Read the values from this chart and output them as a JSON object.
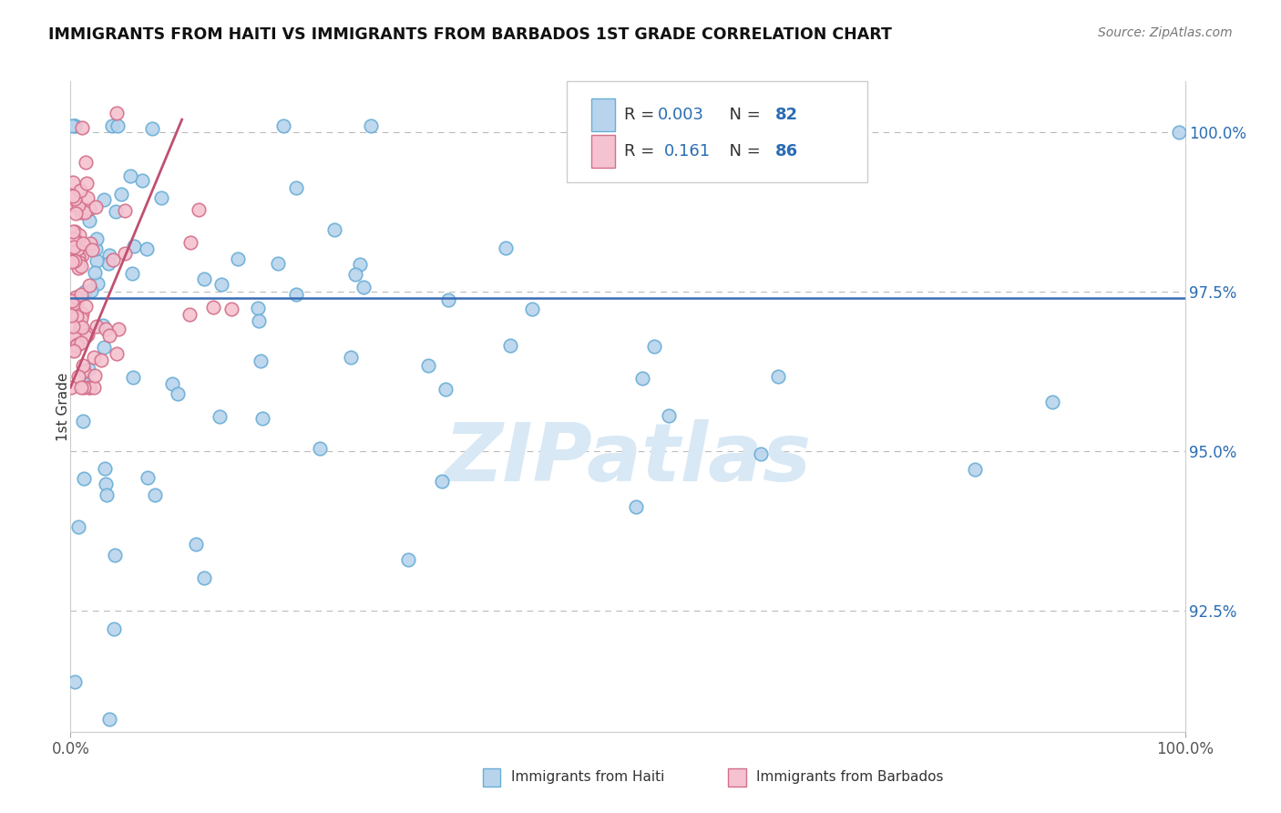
{
  "title": "IMMIGRANTS FROM HAITI VS IMMIGRANTS FROM BARBADOS 1ST GRADE CORRELATION CHART",
  "source_text": "Source: ZipAtlas.com",
  "ylabel": "1st Grade",
  "xlim": [
    0.0,
    1.0
  ],
  "ylim": [
    0.906,
    1.008
  ],
  "ytick_labels": [
    "92.5%",
    "95.0%",
    "97.5%",
    "100.0%"
  ],
  "ytick_positions": [
    0.925,
    0.95,
    0.975,
    1.0
  ],
  "haiti_color": "#b8d4ed",
  "haiti_edge_color": "#6aaed6",
  "barbados_color": "#f4c2d0",
  "barbados_edge_color": "#d4708a",
  "haiti_R": "0.003",
  "haiti_N": "82",
  "barbados_R": "0.161",
  "barbados_N": "86",
  "trendline_haiti_color": "#3a6db5",
  "trendline_barbados_color": "#c05070",
  "watermark": "ZIPatlas",
  "watermark_color": "#d8e8f5",
  "legend_color": "#2a6db5",
  "legend_r_black": "#333333",
  "title_fontsize": 12.5,
  "tick_fontsize": 12
}
